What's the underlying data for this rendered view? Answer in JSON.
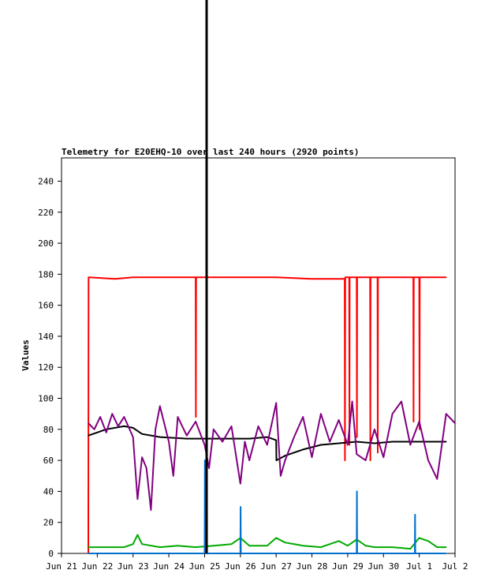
{
  "chart_data": {
    "type": "line",
    "title": "Telemetry for E20EHQ-10 over last 240 hours (2920 points)",
    "xlabel": "",
    "ylabel": "Values",
    "x_ticks": [
      "Jun 21",
      "Jun 22",
      "Jun 23",
      "Jun 24",
      "Jun 25",
      "Jun 26",
      "Jun 27",
      "Jun 28",
      "Jun 29",
      "Jun 30",
      "Jul 1",
      "Jul 2"
    ],
    "x_range": [
      "2024-06-21 00:00",
      "2024-07-02 00:00"
    ],
    "ylim": [
      0,
      255
    ],
    "y_ticks": [
      0,
      20,
      40,
      60,
      80,
      100,
      120,
      140,
      160,
      180,
      200,
      220,
      240
    ],
    "grid": false,
    "series": [
      {
        "color": "#ff0000",
        "points": [
          [
            "06-21 18:00",
            0
          ],
          [
            "06-21 18:10",
            178
          ],
          [
            "06-22 12:00",
            177
          ],
          [
            "06-23 00:00",
            178
          ],
          [
            "06-24 00:00",
            178
          ],
          [
            "06-24 18:00",
            178
          ],
          [
            "06-24 18:10",
            88
          ],
          [
            "06-24 18:20",
            178
          ],
          [
            "06-25 12:00",
            178
          ],
          [
            "06-26 06:00",
            178
          ],
          [
            "06-27 00:00",
            178
          ],
          [
            "06-28 00:00",
            177
          ],
          [
            "06-28 18:00",
            177
          ],
          [
            "06-28 22:00",
            177
          ],
          [
            "06-28 22:10",
            60
          ],
          [
            "06-28 22:20",
            178
          ],
          [
            "06-29 01:00",
            178
          ],
          [
            "06-29 01:10",
            70
          ],
          [
            "06-29 01:20",
            178
          ],
          [
            "06-29 06:00",
            178
          ],
          [
            "06-29 06:10",
            75
          ],
          [
            "06-29 06:20",
            178
          ],
          [
            "06-29 15:00",
            178
          ],
          [
            "06-29 15:10",
            60
          ],
          [
            "06-29 15:20",
            178
          ],
          [
            "06-29 20:00",
            178
          ],
          [
            "06-29 20:10",
            65
          ],
          [
            "06-29 20:20",
            178
          ],
          [
            "06-30 20:00",
            178
          ],
          [
            "06-30 20:10",
            85
          ],
          [
            "06-30 20:20",
            178
          ],
          [
            "07-01 00:00",
            178
          ],
          [
            "07-01 00:10",
            80
          ],
          [
            "07-01 00:20",
            178
          ],
          [
            "07-01 18:00",
            178
          ]
        ]
      },
      {
        "color": "#000000",
        "points": [
          [
            "06-21 18:00",
            76
          ],
          [
            "06-22 06:00",
            80
          ],
          [
            "06-22 18:00",
            82
          ],
          [
            "06-23 00:00",
            81
          ],
          [
            "06-23 06:00",
            77
          ],
          [
            "06-23 18:00",
            75
          ],
          [
            "06-24 12:00",
            74
          ],
          [
            "06-25 06:00",
            74
          ],
          [
            "06-25 18:00",
            74
          ],
          [
            "06-26 06:00",
            74
          ],
          [
            "06-26 18:00",
            75
          ],
          [
            "06-27 00:00",
            73
          ],
          [
            "06-27 00:10",
            60
          ],
          [
            "06-27 06:00",
            63
          ],
          [
            "06-27 18:00",
            67
          ],
          [
            "06-28 06:00",
            70
          ],
          [
            "06-28 18:00",
            71
          ],
          [
            "06-29 06:00",
            72
          ],
          [
            "06-29 18:00",
            71
          ],
          [
            "06-30 06:00",
            72
          ],
          [
            "06-30 18:00",
            72
          ],
          [
            "07-01 06:00",
            72
          ],
          [
            "07-01 18:00",
            72
          ]
        ]
      },
      {
        "color": "#800080",
        "points": [
          [
            "06-21 18:00",
            84
          ],
          [
            "06-21 22:00",
            80
          ],
          [
            "06-22 02:00",
            88
          ],
          [
            "06-22 06:00",
            78
          ],
          [
            "06-22 10:00",
            90
          ],
          [
            "06-22 14:00",
            82
          ],
          [
            "06-22 18:00",
            88
          ],
          [
            "06-23 00:00",
            75
          ],
          [
            "06-23 03:00",
            35
          ],
          [
            "06-23 06:00",
            62
          ],
          [
            "06-23 09:00",
            55
          ],
          [
            "06-23 12:00",
            28
          ],
          [
            "06-23 15:00",
            80
          ],
          [
            "06-23 18:00",
            95
          ],
          [
            "06-24 00:00",
            72
          ],
          [
            "06-24 03:00",
            50
          ],
          [
            "06-24 06:00",
            88
          ],
          [
            "06-24 12:00",
            76
          ],
          [
            "06-24 18:00",
            85
          ],
          [
            "06-25 00:00",
            70
          ],
          [
            "06-25 03:00",
            55
          ],
          [
            "06-25 06:00",
            80
          ],
          [
            "06-25 12:00",
            72
          ],
          [
            "06-25 18:00",
            82
          ],
          [
            "06-26 00:00",
            45
          ],
          [
            "06-26 03:00",
            72
          ],
          [
            "06-26 06:00",
            60
          ],
          [
            "06-26 12:00",
            82
          ],
          [
            "06-26 18:00",
            70
          ],
          [
            "06-27 00:00",
            97
          ],
          [
            "06-27 03:00",
            50
          ],
          [
            "06-27 06:00",
            60
          ],
          [
            "06-27 12:00",
            75
          ],
          [
            "06-27 18:00",
            88
          ],
          [
            "06-28 00:00",
            62
          ],
          [
            "06-28 06:00",
            90
          ],
          [
            "06-28 12:00",
            72
          ],
          [
            "06-28 18:00",
            86
          ],
          [
            "06-29 00:00",
            70
          ],
          [
            "06-29 03:00",
            98
          ],
          [
            "06-29 06:00",
            64
          ],
          [
            "06-29 12:00",
            60
          ],
          [
            "06-29 18:00",
            80
          ],
          [
            "06-30 00:00",
            62
          ],
          [
            "06-30 06:00",
            90
          ],
          [
            "06-30 12:00",
            98
          ],
          [
            "06-30 18:00",
            70
          ],
          [
            "07-01 00:00",
            85
          ],
          [
            "07-01 06:00",
            60
          ],
          [
            "07-01 12:00",
            48
          ],
          [
            "07-01 18:00",
            90
          ],
          [
            "07-02 00:00",
            84
          ]
        ]
      },
      {
        "color": "#00aa00",
        "points": [
          [
            "06-21 18:00",
            4
          ],
          [
            "06-22 12:00",
            4
          ],
          [
            "06-22 18:00",
            4
          ],
          [
            "06-23 00:00",
            6
          ],
          [
            "06-23 03:00",
            12
          ],
          [
            "06-23 06:00",
            6
          ],
          [
            "06-23 18:00",
            4
          ],
          [
            "06-24 06:00",
            5
          ],
          [
            "06-24 18:00",
            4
          ],
          [
            "06-25 06:00",
            5
          ],
          [
            "06-25 18:00",
            6
          ],
          [
            "06-26 00:00",
            10
          ],
          [
            "06-26 06:00",
            5
          ],
          [
            "06-26 18:00",
            5
          ],
          [
            "06-27 00:00",
            10
          ],
          [
            "06-27 06:00",
            7
          ],
          [
            "06-27 18:00",
            5
          ],
          [
            "06-28 06:00",
            4
          ],
          [
            "06-28 18:00",
            8
          ],
          [
            "06-29 00:00",
            5
          ],
          [
            "06-29 06:00",
            9
          ],
          [
            "06-29 12:00",
            5
          ],
          [
            "06-29 18:00",
            4
          ],
          [
            "06-30 06:00",
            4
          ],
          [
            "06-30 18:00",
            3
          ],
          [
            "07-01 00:00",
            10
          ],
          [
            "07-01 06:00",
            8
          ],
          [
            "07-01 12:00",
            4
          ],
          [
            "07-01 18:00",
            4
          ]
        ]
      },
      {
        "color": "#0070d0",
        "points": [
          [
            "06-21 18:00",
            0
          ],
          [
            "06-25 00:00",
            0
          ],
          [
            "06-25 00:10",
            60
          ],
          [
            "06-25 00:20",
            0
          ],
          [
            "06-26 00:00",
            0
          ],
          [
            "06-26 00:10",
            30
          ],
          [
            "06-26 00:20",
            0
          ],
          [
            "06-29 06:00",
            0
          ],
          [
            "06-29 06:10",
            40
          ],
          [
            "06-29 06:20",
            0
          ],
          [
            "06-30 21:00",
            0
          ],
          [
            "06-30 21:10",
            25
          ],
          [
            "06-30 21:20",
            0
          ],
          [
            "07-01 18:00",
            0
          ]
        ]
      }
    ]
  }
}
